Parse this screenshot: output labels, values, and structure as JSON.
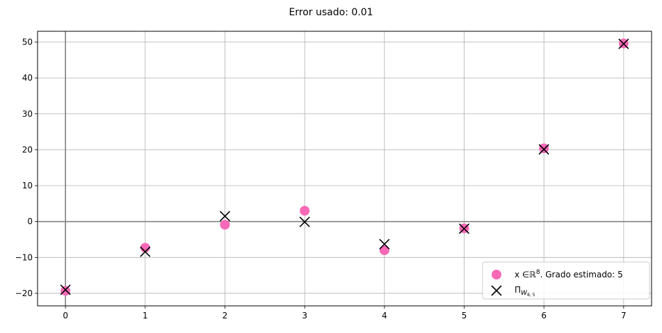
{
  "chart_data": {
    "type": "scatter",
    "title": "Error usado: 0.01",
    "xlabel": "",
    "ylabel": "",
    "xlim": [
      -0.35,
      7.35
    ],
    "ylim": [
      -23.5,
      53.0
    ],
    "x_ticks": [
      0,
      1,
      2,
      3,
      4,
      5,
      6,
      7
    ],
    "y_ticks": [
      -20,
      -10,
      0,
      10,
      20,
      30,
      40,
      50
    ],
    "y_tick_labels": [
      "−20",
      "−10",
      "0",
      "10",
      "20",
      "30",
      "40",
      "50"
    ],
    "grid": true,
    "legend_position": "lower-right",
    "series": [
      {
        "name": "x ∈ℝ⁸. Grado estimado: 5",
        "marker": "circle",
        "color": "#f768b6",
        "x": [
          0,
          1,
          2,
          3,
          4,
          5,
          6,
          7
        ],
        "y": [
          -19.3,
          -7.3,
          -0.9,
          3.0,
          -8.0,
          -1.9,
          20.4,
          49.6
        ]
      },
      {
        "name": "ΠW8,5",
        "marker": "x",
        "color": "#000000",
        "x": [
          0,
          1,
          2,
          3,
          4,
          5,
          6,
          7
        ],
        "y": [
          -19.0,
          -8.4,
          1.5,
          -0.1,
          -6.3,
          -2.0,
          20.1,
          49.5
        ]
      }
    ]
  }
}
